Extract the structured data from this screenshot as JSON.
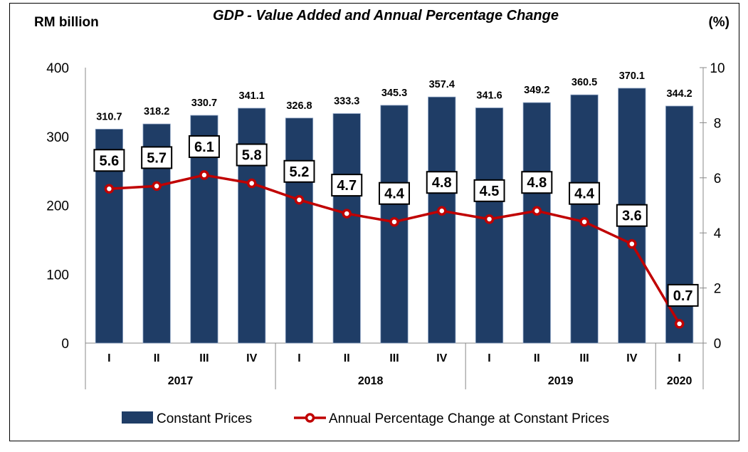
{
  "chart_data": {
    "type": "bar",
    "title": "GDP - Value Added and Annual Percentage Change",
    "ylabel": "RM billion",
    "y2label": "(%)",
    "ylim": [
      0,
      400
    ],
    "y2lim": [
      0,
      10
    ],
    "yticks": [
      0,
      100,
      200,
      300,
      400
    ],
    "y2ticks": [
      0,
      2,
      4,
      6,
      8,
      10
    ],
    "grid": false,
    "legend_position": "bottom",
    "categories": [
      "I",
      "II",
      "III",
      "IV",
      "I",
      "II",
      "III",
      "IV",
      "I",
      "II",
      "III",
      "IV",
      "I"
    ],
    "years": [
      {
        "label": "2017",
        "count": 4
      },
      {
        "label": "2018",
        "count": 4
      },
      {
        "label": "2019",
        "count": 4
      },
      {
        "label": "2020",
        "count": 1
      }
    ],
    "series": [
      {
        "name": "Constant Prices",
        "type": "bar",
        "axis": "left",
        "color": "#1f3d66",
        "values": [
          310.7,
          318.2,
          330.7,
          341.1,
          326.8,
          333.3,
          345.3,
          357.4,
          341.6,
          349.2,
          360.5,
          370.1,
          344.2
        ],
        "labels": [
          "310.7",
          "318.2",
          "330.7",
          "341.1",
          "326.8",
          "333.3",
          "345.3",
          "357.4",
          "341.6",
          "349.2",
          "360.5",
          "370.1",
          "344.2"
        ]
      },
      {
        "name": "Annual Percentage Change at Constant Prices",
        "type": "line",
        "axis": "right",
        "color": "#c00000",
        "values": [
          5.6,
          5.7,
          6.1,
          5.8,
          5.2,
          4.7,
          4.4,
          4.8,
          4.5,
          4.8,
          4.4,
          3.6,
          0.7
        ],
        "labels": [
          "5.6",
          "5.7",
          "6.1",
          "5.8",
          "5.2",
          "4.7",
          "4.4",
          "4.8",
          "4.5",
          "4.8",
          "4.4",
          "3.6",
          "0.7"
        ]
      }
    ]
  }
}
